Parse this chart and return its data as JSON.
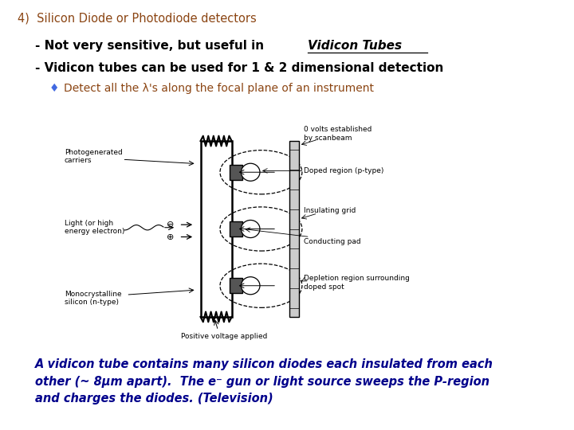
{
  "title": "4)  Silicon Diode or Photodiode detectors",
  "title_color": "#8B4513",
  "line1_prefix": "- Not very sensitive, but useful in ",
  "line1_link": "Vidicon Tubes",
  "line2": "- Vidicon tubes can be used for 1 & 2 dimensional detection",
  "bullet_char": "♦",
  "bullet_color": "#4169E1",
  "bullet_text": "Detect all the λ's along the focal plane of an instrument",
  "bullet_text_color": "#8B4513",
  "bottom_text_color": "#00008B",
  "bg_color": "#FFFFFF",
  "body_color": "#000000"
}
